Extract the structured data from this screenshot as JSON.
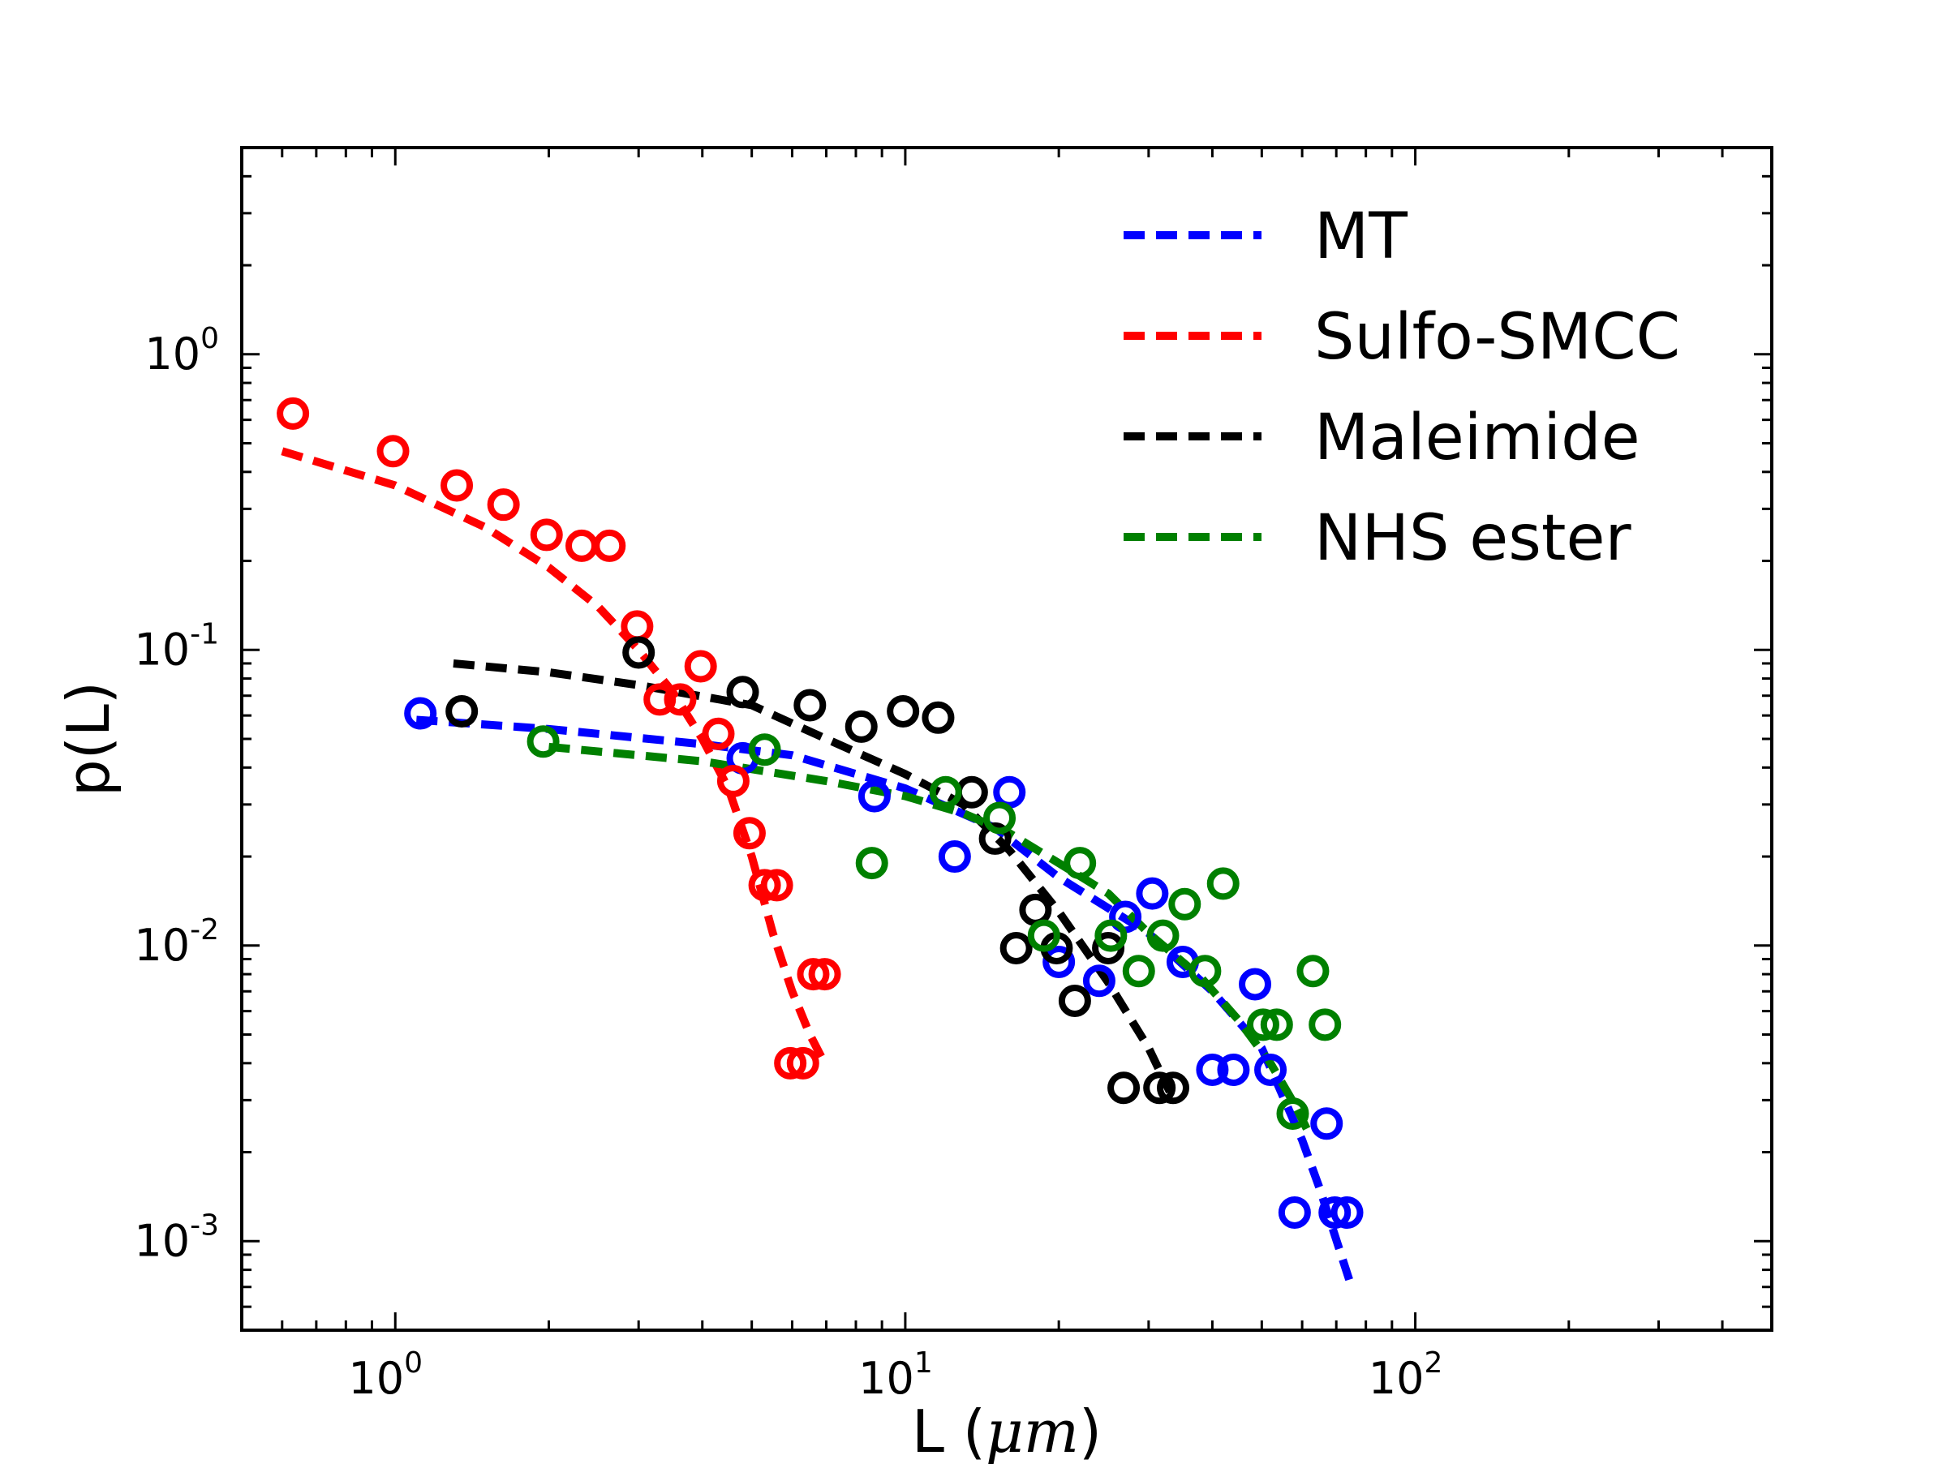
{
  "chart_data": {
    "type": "scatter",
    "title": "",
    "xlabel": "L (",
    "xlabel_unit": "μm",
    "xlabel_close": ")",
    "ylabel": "p(L)",
    "xscale": "log",
    "yscale": "log",
    "xlim": [
      0.5,
      500
    ],
    "ylim": [
      0.0005,
      5
    ],
    "x_ticks": [
      {
        "value": 1,
        "base": "10",
        "exp": "0"
      },
      {
        "value": 10,
        "base": "10",
        "exp": "1"
      },
      {
        "value": 100,
        "base": "10",
        "exp": "2"
      }
    ],
    "y_ticks": [
      {
        "value": 1,
        "base": "10",
        "exp": "0"
      },
      {
        "value": 0.1,
        "base": "10",
        "exp": "-1"
      },
      {
        "value": 0.01,
        "base": "10",
        "exp": "-2"
      },
      {
        "value": 0.001,
        "base": "10",
        "exp": "-3"
      }
    ],
    "grid": false,
    "legend_position": "top-right",
    "series": [
      {
        "name": "MT",
        "color": "#0000ff",
        "points": [
          [
            1.12,
            0.061
          ],
          [
            4.8,
            0.043
          ],
          [
            8.7,
            0.032
          ],
          [
            12.5,
            0.02
          ],
          [
            16.0,
            0.033
          ],
          [
            20.0,
            0.0088
          ],
          [
            24.0,
            0.0076
          ],
          [
            27.0,
            0.0125
          ],
          [
            30.5,
            0.015
          ],
          [
            35.0,
            0.0088
          ],
          [
            40.0,
            0.0038
          ],
          [
            44.0,
            0.0038
          ],
          [
            48.5,
            0.0074
          ],
          [
            52.0,
            0.0038
          ],
          [
            58.0,
            0.00125
          ],
          [
            67.0,
            0.0025
          ],
          [
            69.5,
            0.00125
          ],
          [
            73.5,
            0.00125
          ]
        ],
        "fit": [
          [
            1.1,
            0.058
          ],
          [
            2,
            0.054
          ],
          [
            4,
            0.048
          ],
          [
            6,
            0.044
          ],
          [
            10,
            0.034
          ],
          [
            15,
            0.025
          ],
          [
            20,
            0.017
          ],
          [
            30,
            0.011
          ],
          [
            40,
            0.007
          ],
          [
            50,
            0.0045
          ],
          [
            60,
            0.0022
          ],
          [
            65,
            0.0015
          ],
          [
            75,
            0.0007
          ]
        ]
      },
      {
        "name": "Sulfo-SMCC",
        "color": "#ff0000",
        "points": [
          [
            0.63,
            0.63
          ],
          [
            0.99,
            0.47
          ],
          [
            1.32,
            0.36
          ],
          [
            1.63,
            0.31
          ],
          [
            1.98,
            0.245
          ],
          [
            2.32,
            0.225
          ],
          [
            2.63,
            0.225
          ],
          [
            2.98,
            0.12
          ],
          [
            3.3,
            0.068
          ],
          [
            3.62,
            0.068
          ],
          [
            3.97,
            0.088
          ],
          [
            4.3,
            0.052
          ],
          [
            4.6,
            0.036
          ],
          [
            4.95,
            0.024
          ],
          [
            5.3,
            0.016
          ],
          [
            5.6,
            0.016
          ],
          [
            5.95,
            0.004
          ],
          [
            6.3,
            0.004
          ],
          [
            6.6,
            0.008
          ],
          [
            6.95,
            0.008
          ]
        ],
        "fit": [
          [
            0.6,
            0.47
          ],
          [
            1,
            0.36
          ],
          [
            1.5,
            0.26
          ],
          [
            2,
            0.19
          ],
          [
            2.5,
            0.14
          ],
          [
            3,
            0.1
          ],
          [
            3.5,
            0.072
          ],
          [
            4,
            0.05
          ],
          [
            4.5,
            0.034
          ],
          [
            5,
            0.02
          ],
          [
            5.5,
            0.011
          ],
          [
            6,
            0.007
          ],
          [
            6.5,
            0.005
          ],
          [
            7,
            0.0039
          ]
        ]
      },
      {
        "name": "Maleimide",
        "color": "#000000",
        "points": [
          [
            1.35,
            0.062
          ],
          [
            3.0,
            0.098
          ],
          [
            4.8,
            0.072
          ],
          [
            6.5,
            0.065
          ],
          [
            8.2,
            0.055
          ],
          [
            9.9,
            0.062
          ],
          [
            11.6,
            0.059
          ],
          [
            13.5,
            0.033
          ],
          [
            15.0,
            0.023
          ],
          [
            16.5,
            0.0098
          ],
          [
            18.0,
            0.0132
          ],
          [
            19.8,
            0.0098
          ],
          [
            21.5,
            0.0065
          ],
          [
            25.0,
            0.0098
          ],
          [
            26.8,
            0.0033
          ],
          [
            31.5,
            0.0033
          ],
          [
            33.5,
            0.0033
          ]
        ],
        "fit": [
          [
            1.3,
            0.09
          ],
          [
            2,
            0.084
          ],
          [
            3,
            0.076
          ],
          [
            5,
            0.065
          ],
          [
            7,
            0.05
          ],
          [
            10,
            0.038
          ],
          [
            13,
            0.03
          ],
          [
            16,
            0.021
          ],
          [
            20,
            0.013
          ],
          [
            25,
            0.0075
          ],
          [
            30,
            0.0045
          ],
          [
            33,
            0.0032
          ]
        ]
      },
      {
        "name": "NHS ester",
        "color": "#008000",
        "points": [
          [
            1.95,
            0.049
          ],
          [
            5.3,
            0.046
          ],
          [
            8.6,
            0.019
          ],
          [
            12.0,
            0.033
          ],
          [
            15.3,
            0.027
          ],
          [
            18.7,
            0.0108
          ],
          [
            22.0,
            0.019
          ],
          [
            25.3,
            0.0108
          ],
          [
            28.7,
            0.0082
          ],
          [
            32.0,
            0.0108
          ],
          [
            35.3,
            0.0138
          ],
          [
            38.7,
            0.0082
          ],
          [
            42.0,
            0.0162
          ],
          [
            50.3,
            0.0054
          ],
          [
            53.5,
            0.0054
          ],
          [
            57.5,
            0.0027
          ],
          [
            63.0,
            0.0082
          ],
          [
            66.5,
            0.0054
          ]
        ],
        "fit": [
          [
            2,
            0.047
          ],
          [
            4,
            0.042
          ],
          [
            7,
            0.036
          ],
          [
            10,
            0.032
          ],
          [
            13,
            0.028
          ],
          [
            16,
            0.024
          ],
          [
            20,
            0.019
          ],
          [
            25,
            0.015
          ],
          [
            30,
            0.011
          ],
          [
            38,
            0.0078
          ],
          [
            45,
            0.0056
          ],
          [
            52,
            0.004
          ],
          [
            58,
            0.0029
          ],
          [
            62,
            0.0023
          ]
        ]
      }
    ]
  }
}
